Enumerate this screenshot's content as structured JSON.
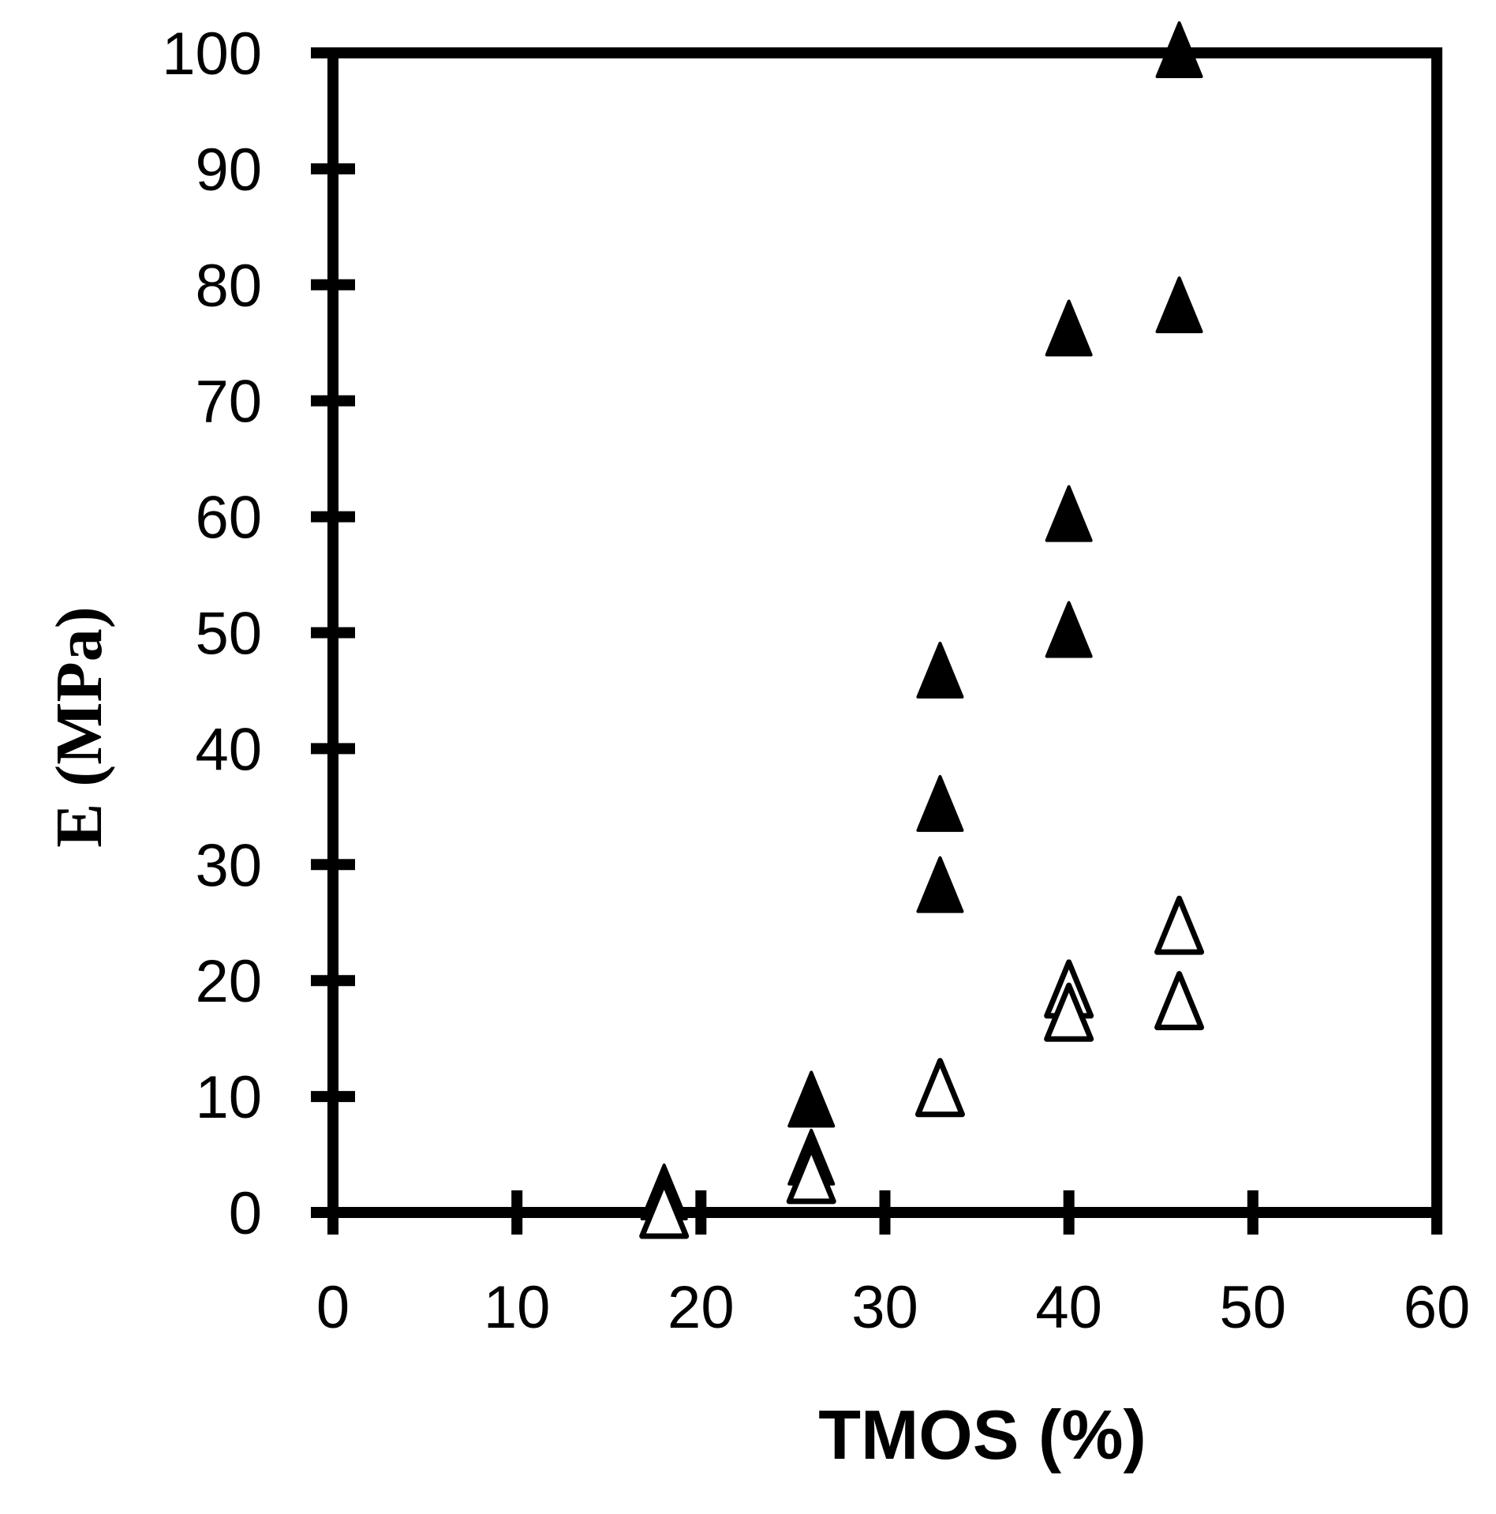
{
  "chart_data": {
    "type": "scatter",
    "title": "",
    "xlabel": "TMOS (%)",
    "ylabel": "E (MPa)",
    "xlim": [
      0,
      60
    ],
    "ylim": [
      0,
      100
    ],
    "x_ticks": [
      "0",
      "10",
      "20",
      "30",
      "40",
      "50",
      "60"
    ],
    "y_ticks": [
      "0",
      "10",
      "20",
      "30",
      "40",
      "50",
      "60",
      "70",
      "80",
      "90",
      "100"
    ],
    "grid": false,
    "legend": "none",
    "series": [
      {
        "marker": "filled-triangle",
        "color": "#000000",
        "points": [
          {
            "x": 18,
            "y": 1.5
          },
          {
            "x": 26,
            "y": 9.5
          },
          {
            "x": 26,
            "y": 4.5
          },
          {
            "x": 33,
            "y": 46.5
          },
          {
            "x": 33,
            "y": 35
          },
          {
            "x": 33,
            "y": 28
          },
          {
            "x": 40,
            "y": 76
          },
          {
            "x": 40,
            "y": 60
          },
          {
            "x": 40,
            "y": 50
          },
          {
            "x": 46,
            "y": 100
          },
          {
            "x": 46,
            "y": 78
          }
        ]
      },
      {
        "marker": "open-triangle",
        "color": "#000000",
        "points": [
          {
            "x": 18,
            "y": 0
          },
          {
            "x": 26,
            "y": 3
          },
          {
            "x": 33,
            "y": 10.5
          },
          {
            "x": 40,
            "y": 19
          },
          {
            "x": 40,
            "y": 17
          },
          {
            "x": 46,
            "y": 24.5
          },
          {
            "x": 46,
            "y": 18
          }
        ]
      }
    ]
  }
}
